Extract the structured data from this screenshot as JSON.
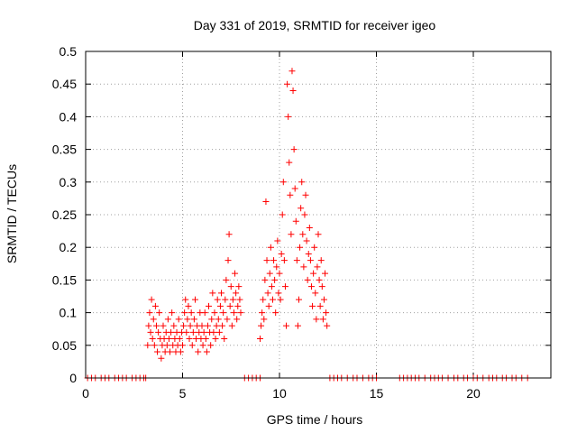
{
  "chart_data": {
    "type": "scatter",
    "title": "Day 331 of 2019, SRMTID for receiver igeo",
    "xlabel": "GPS time / hours",
    "ylabel": "SRMTID / TECUs",
    "xlim": [
      0,
      24
    ],
    "ylim": [
      0,
      0.5
    ],
    "xticks": [
      0,
      5,
      10,
      15,
      20
    ],
    "xtick_labels": [
      "0",
      "5",
      "10",
      "15",
      "20"
    ],
    "yticks": [
      0,
      0.05,
      0.1,
      0.15,
      0.2,
      0.25,
      0.3,
      0.35,
      0.4,
      0.45,
      0.5
    ],
    "ytick_labels": [
      "0",
      "0.05",
      "0.1",
      "0.15",
      "0.2",
      "0.25",
      "0.3",
      "0.35",
      "0.4",
      "0.45",
      "0.5"
    ],
    "grid": true,
    "marker": "+",
    "series": [
      {
        "name": "SRMTID",
        "color": "#ff0000",
        "points": [
          [
            0.1,
            0
          ],
          [
            0.3,
            0
          ],
          [
            0.5,
            0
          ],
          [
            0.8,
            0
          ],
          [
            1.0,
            0
          ],
          [
            1.2,
            0
          ],
          [
            1.5,
            0
          ],
          [
            1.7,
            0
          ],
          [
            1.9,
            0
          ],
          [
            2.1,
            0
          ],
          [
            2.4,
            0
          ],
          [
            2.6,
            0
          ],
          [
            2.8,
            0
          ],
          [
            3.0,
            0
          ],
          [
            3.1,
            0
          ],
          [
            3.2,
            0.05
          ],
          [
            3.25,
            0.08
          ],
          [
            3.3,
            0.1
          ],
          [
            3.35,
            0.07
          ],
          [
            3.4,
            0.12
          ],
          [
            3.45,
            0.06
          ],
          [
            3.5,
            0.09
          ],
          [
            3.55,
            0.05
          ],
          [
            3.6,
            0.11
          ],
          [
            3.65,
            0.08
          ],
          [
            3.7,
            0.04
          ],
          [
            3.75,
            0.07
          ],
          [
            3.8,
            0.1
          ],
          [
            3.85,
            0.06
          ],
          [
            3.9,
            0.03
          ],
          [
            3.95,
            0.05
          ],
          [
            4.0,
            0.08
          ],
          [
            4.05,
            0.06
          ],
          [
            4.1,
            0.04
          ],
          [
            4.15,
            0.07
          ],
          [
            4.2,
            0.05
          ],
          [
            4.25,
            0.09
          ],
          [
            4.3,
            0.06
          ],
          [
            4.35,
            0.04
          ],
          [
            4.4,
            0.07
          ],
          [
            4.45,
            0.1
          ],
          [
            4.5,
            0.05
          ],
          [
            4.55,
            0.08
          ],
          [
            4.6,
            0.06
          ],
          [
            4.65,
            0.04
          ],
          [
            4.7,
            0.07
          ],
          [
            4.75,
            0.05
          ],
          [
            4.8,
            0.09
          ],
          [
            4.85,
            0.06
          ],
          [
            4.9,
            0.04
          ],
          [
            4.95,
            0.07
          ],
          [
            5.0,
            0.05
          ],
          [
            5.05,
            0.08
          ],
          [
            5.1,
            0.1
          ],
          [
            5.15,
            0.12
          ],
          [
            5.2,
            0.07
          ],
          [
            5.25,
            0.09
          ],
          [
            5.3,
            0.11
          ],
          [
            5.35,
            0.06
          ],
          [
            5.4,
            0.08
          ],
          [
            5.45,
            0.1
          ],
          [
            5.5,
            0.05
          ],
          [
            5.55,
            0.07
          ],
          [
            5.6,
            0.09
          ],
          [
            5.65,
            0.12
          ],
          [
            5.7,
            0.06
          ],
          [
            5.75,
            0.08
          ],
          [
            5.8,
            0.04
          ],
          [
            5.85,
            0.07
          ],
          [
            5.9,
            0.1
          ],
          [
            5.95,
            0.06
          ],
          [
            6.0,
            0.08
          ],
          [
            6.05,
            0.05
          ],
          [
            6.1,
            0.07
          ],
          [
            6.15,
            0.1
          ],
          [
            6.2,
            0.06
          ],
          [
            6.25,
            0.04
          ],
          [
            6.3,
            0.08
          ],
          [
            6.35,
            0.11
          ],
          [
            6.4,
            0.07
          ],
          [
            6.45,
            0.05
          ],
          [
            6.5,
            0.09
          ],
          [
            6.55,
            0.13
          ],
          [
            6.6,
            0.07
          ],
          [
            6.65,
            0.1
          ],
          [
            6.7,
            0.06
          ],
          [
            6.75,
            0.08
          ],
          [
            6.8,
            0.12
          ],
          [
            6.85,
            0.09
          ],
          [
            6.9,
            0.07
          ],
          [
            6.95,
            0.11
          ],
          [
            7.0,
            0.13
          ],
          [
            7.05,
            0.08
          ],
          [
            7.1,
            0.1
          ],
          [
            7.15,
            0.06
          ],
          [
            7.2,
            0.12
          ],
          [
            7.25,
            0.15
          ],
          [
            7.3,
            0.09
          ],
          [
            7.35,
            0.18
          ],
          [
            7.4,
            0.22
          ],
          [
            7.45,
            0.11
          ],
          [
            7.5,
            0.14
          ],
          [
            7.55,
            0.08
          ],
          [
            7.6,
            0.12
          ],
          [
            7.65,
            0.1
          ],
          [
            7.7,
            0.16
          ],
          [
            7.75,
            0.13
          ],
          [
            7.8,
            0.09
          ],
          [
            7.85,
            0.11
          ],
          [
            7.9,
            0.14
          ],
          [
            7.95,
            0.12
          ],
          [
            8.0,
            0.1
          ],
          [
            8.2,
            0
          ],
          [
            8.4,
            0
          ],
          [
            8.6,
            0
          ],
          [
            8.8,
            0
          ],
          [
            9.0,
            0
          ],
          [
            9.0,
            0.06
          ],
          [
            9.05,
            0.08
          ],
          [
            9.1,
            0.1
          ],
          [
            9.15,
            0.12
          ],
          [
            9.2,
            0.09
          ],
          [
            9.25,
            0.15
          ],
          [
            9.3,
            0.27
          ],
          [
            9.35,
            0.18
          ],
          [
            9.4,
            0.13
          ],
          [
            9.45,
            0.11
          ],
          [
            9.5,
            0.16
          ],
          [
            9.55,
            0.2
          ],
          [
            9.6,
            0.14
          ],
          [
            9.65,
            0.12
          ],
          [
            9.7,
            0.18
          ],
          [
            9.75,
            0.15
          ],
          [
            9.8,
            0.1
          ],
          [
            9.85,
            0.17
          ],
          [
            9.9,
            0.21
          ],
          [
            9.95,
            0.13
          ],
          [
            10.0,
            0.16
          ],
          [
            10.05,
            0.12
          ],
          [
            10.1,
            0.19
          ],
          [
            10.15,
            0.25
          ],
          [
            10.2,
            0.3
          ],
          [
            10.25,
            0.18
          ],
          [
            10.3,
            0.14
          ],
          [
            10.35,
            0.08
          ],
          [
            10.4,
            0.45
          ],
          [
            10.45,
            0.4
          ],
          [
            10.5,
            0.33
          ],
          [
            10.55,
            0.28
          ],
          [
            10.6,
            0.22
          ],
          [
            10.65,
            0.47
          ],
          [
            10.7,
            0.44
          ],
          [
            10.75,
            0.35
          ],
          [
            10.8,
            0.29
          ],
          [
            10.85,
            0.24
          ],
          [
            10.9,
            0.18
          ],
          [
            10.95,
            0.08
          ],
          [
            11.0,
            0.12
          ],
          [
            11.05,
            0.2
          ],
          [
            11.1,
            0.26
          ],
          [
            11.15,
            0.3
          ],
          [
            11.2,
            0.22
          ],
          [
            11.25,
            0.17
          ],
          [
            11.3,
            0.25
          ],
          [
            11.35,
            0.28
          ],
          [
            11.4,
            0.21
          ],
          [
            11.45,
            0.15
          ],
          [
            11.5,
            0.19
          ],
          [
            11.55,
            0.23
          ],
          [
            11.6,
            0.18
          ],
          [
            11.65,
            0.14
          ],
          [
            11.7,
            0.11
          ],
          [
            11.75,
            0.16
          ],
          [
            11.8,
            0.2
          ],
          [
            11.85,
            0.13
          ],
          [
            11.9,
            0.09
          ],
          [
            11.95,
            0.17
          ],
          [
            12.0,
            0.22
          ],
          [
            12.05,
            0.15
          ],
          [
            12.1,
            0.11
          ],
          [
            12.15,
            0.18
          ],
          [
            12.2,
            0.14
          ],
          [
            12.25,
            0.09
          ],
          [
            12.3,
            0.12
          ],
          [
            12.35,
            0.16
          ],
          [
            12.4,
            0.1
          ],
          [
            12.45,
            0.08
          ],
          [
            12.6,
            0
          ],
          [
            12.8,
            0
          ],
          [
            13.0,
            0
          ],
          [
            13.2,
            0
          ],
          [
            13.5,
            0
          ],
          [
            13.8,
            0
          ],
          [
            14.0,
            0
          ],
          [
            14.3,
            0
          ],
          [
            14.6,
            0
          ],
          [
            14.8,
            0
          ],
          [
            15.0,
            0
          ],
          [
            16.2,
            0
          ],
          [
            16.4,
            0
          ],
          [
            16.6,
            0
          ],
          [
            16.8,
            0
          ],
          [
            17.0,
            0
          ],
          [
            17.2,
            0
          ],
          [
            17.5,
            0
          ],
          [
            17.8,
            0
          ],
          [
            18.0,
            0
          ],
          [
            18.2,
            0
          ],
          [
            18.4,
            0
          ],
          [
            18.7,
            0
          ],
          [
            19.0,
            0
          ],
          [
            19.2,
            0
          ],
          [
            19.5,
            0
          ],
          [
            19.7,
            0
          ],
          [
            20.0,
            0
          ],
          [
            20.2,
            0
          ],
          [
            20.5,
            0
          ],
          [
            20.8,
            0
          ],
          [
            21.0,
            0
          ],
          [
            21.2,
            0
          ],
          [
            21.5,
            0
          ],
          [
            21.7,
            0
          ],
          [
            22.0,
            0
          ],
          [
            22.2,
            0
          ],
          [
            22.5,
            0
          ],
          [
            22.8,
            0
          ]
        ]
      }
    ]
  }
}
